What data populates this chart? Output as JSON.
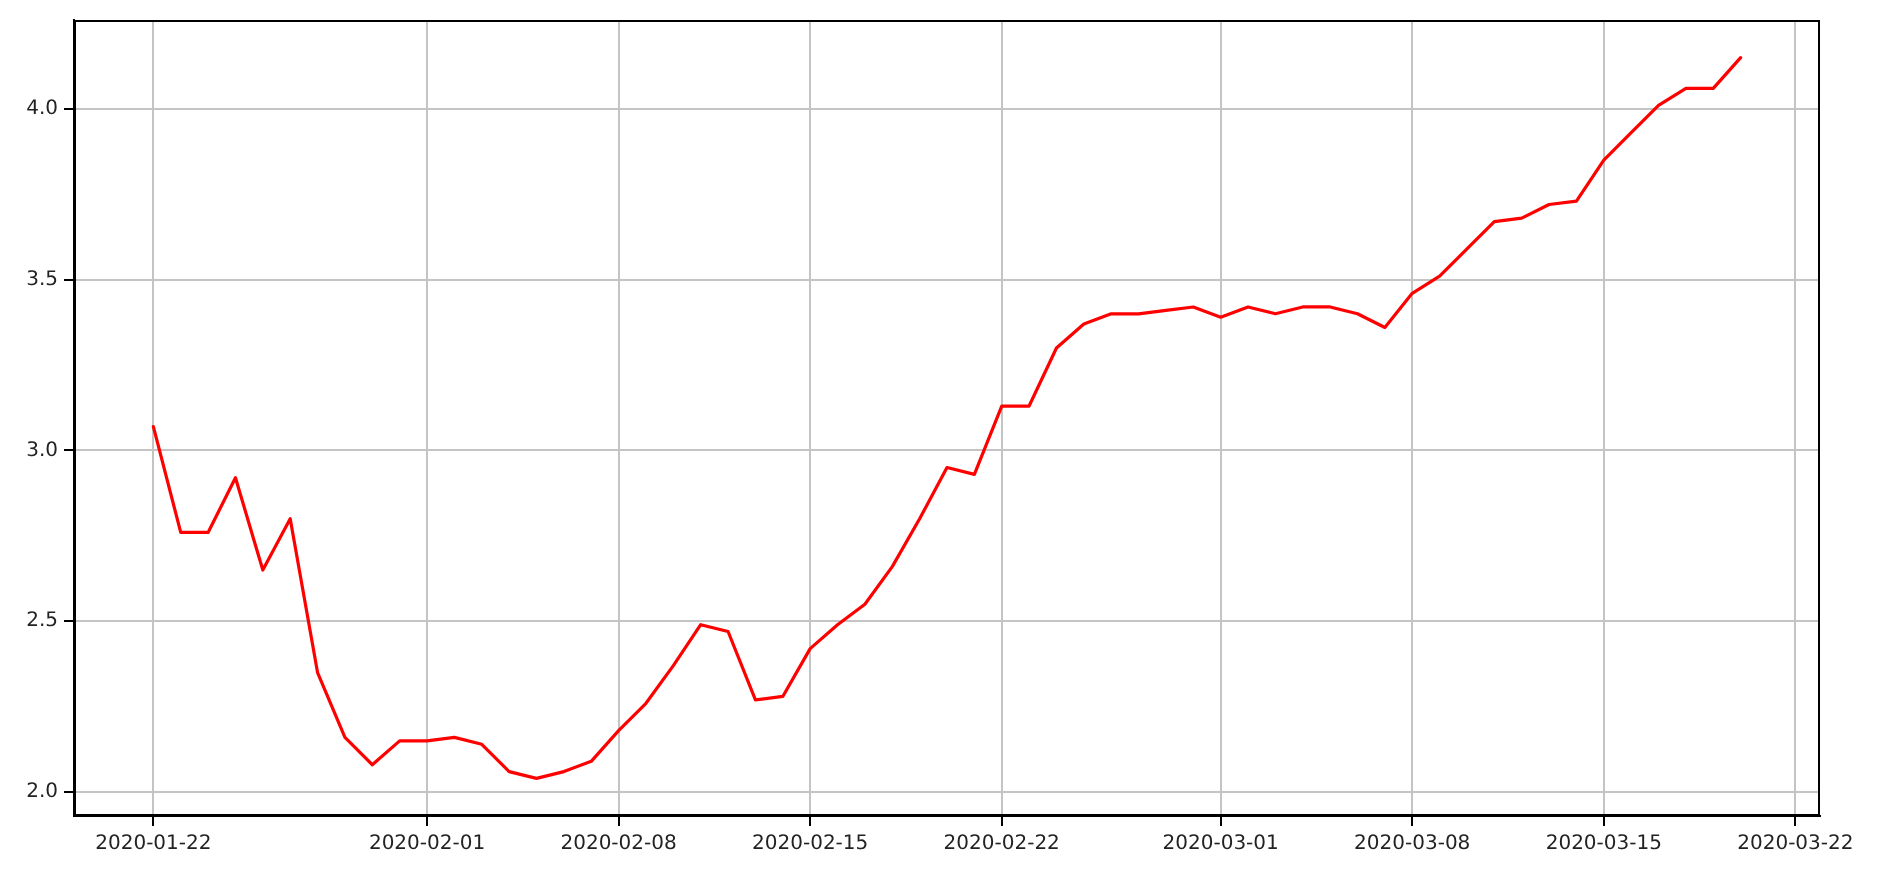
{
  "chart_data": {
    "type": "line",
    "color": "#ff0000",
    "x": [
      "2020-01-22",
      "2020-01-23",
      "2020-01-24",
      "2020-01-25",
      "2020-01-26",
      "2020-01-27",
      "2020-01-28",
      "2020-01-29",
      "2020-01-30",
      "2020-01-31",
      "2020-02-01",
      "2020-02-02",
      "2020-02-03",
      "2020-02-04",
      "2020-02-05",
      "2020-02-06",
      "2020-02-07",
      "2020-02-08",
      "2020-02-09",
      "2020-02-10",
      "2020-02-11",
      "2020-02-12",
      "2020-02-13",
      "2020-02-14",
      "2020-02-15",
      "2020-02-16",
      "2020-02-17",
      "2020-02-18",
      "2020-02-19",
      "2020-02-20",
      "2020-02-21",
      "2020-02-22",
      "2020-02-23",
      "2020-02-24",
      "2020-02-25",
      "2020-02-26",
      "2020-02-27",
      "2020-02-28",
      "2020-02-29",
      "2020-03-01",
      "2020-03-02",
      "2020-03-03",
      "2020-03-04",
      "2020-03-05",
      "2020-03-06",
      "2020-03-07",
      "2020-03-08",
      "2020-03-09",
      "2020-03-10",
      "2020-03-11",
      "2020-03-12",
      "2020-03-13",
      "2020-03-14",
      "2020-03-15",
      "2020-03-16",
      "2020-03-17",
      "2020-03-18",
      "2020-03-19",
      "2020-03-20"
    ],
    "values": [
      3.07,
      2.76,
      2.76,
      2.92,
      2.65,
      2.8,
      2.35,
      2.16,
      2.08,
      2.15,
      2.15,
      2.16,
      2.14,
      2.06,
      2.04,
      2.06,
      2.09,
      2.18,
      2.26,
      2.37,
      2.49,
      2.47,
      2.27,
      2.28,
      2.42,
      2.49,
      2.55,
      2.66,
      2.8,
      2.95,
      2.93,
      3.13,
      3.13,
      3.3,
      3.37,
      3.4,
      3.4,
      3.41,
      3.42,
      3.39,
      3.42,
      3.4,
      3.42,
      3.42,
      3.4,
      3.36,
      3.46,
      3.51,
      3.59,
      3.67,
      3.68,
      3.72,
      3.73,
      3.85,
      3.93,
      4.01,
      4.06,
      4.06,
      4.15
    ],
    "xlim": [
      "2020-01-19T02:24",
      "2020-03-22T21:36"
    ],
    "xticks": [
      "2020-01-22",
      "2020-02-01",
      "2020-02-08",
      "2020-02-15",
      "2020-02-22",
      "2020-03-01",
      "2020-03-08",
      "2020-03-15",
      "2020-03-22"
    ],
    "ylim": [
      1.93,
      4.26
    ],
    "yticks": [
      {
        "value": 2,
        "label": "2.0"
      },
      2.5,
      {
        "value": 3,
        "label": "3.0"
      },
      3.5,
      {
        "value": 4,
        "label": "4.0"
      }
    ],
    "grid": true
  }
}
